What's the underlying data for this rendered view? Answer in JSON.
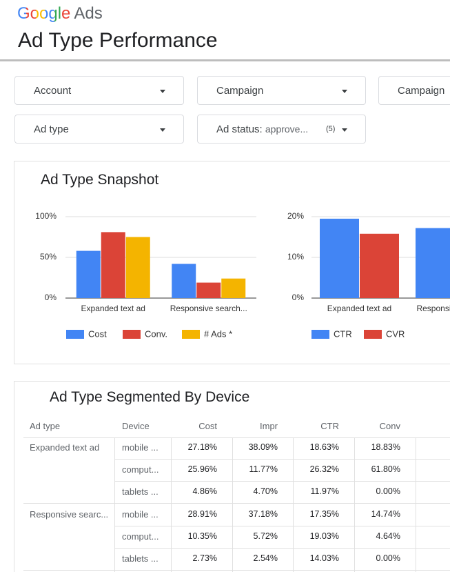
{
  "header": {
    "logo_google": "Google",
    "logo_ads": "Ads",
    "title": "Ad Type Performance"
  },
  "filters": [
    {
      "label": "Account"
    },
    {
      "label": "Campaign"
    },
    {
      "label": "Campaign"
    },
    {
      "label": "Ad type"
    },
    {
      "label": "Ad status:",
      "value": "approve...",
      "count": "(5)"
    }
  ],
  "snapshot": {
    "title": "Ad Type Snapshot",
    "charts": [
      {
        "type": "bar",
        "categories": [
          "Expanded text ad",
          "Responsive search..."
        ],
        "series": [
          {
            "name": "Cost",
            "color": "#4285f4",
            "values": [
              58,
              42
            ]
          },
          {
            "name": "Conv.",
            "color": "#db4437",
            "values": [
              81,
              19
            ]
          },
          {
            "name": "# Ads *",
            "color": "#f4b400",
            "values": [
              75,
              24
            ]
          }
        ],
        "ylim": [
          0,
          100
        ],
        "yticks": [
          {
            "value": 0,
            "label": "0%"
          },
          {
            "value": 50,
            "label": "50%"
          },
          {
            "value": 100,
            "label": "100%"
          }
        ],
        "grid": true
      },
      {
        "type": "bar",
        "categories": [
          "Expanded text ad",
          "Responsive search..."
        ],
        "series": [
          {
            "name": "CTR",
            "color": "#4285f4",
            "values": [
              19.5,
              17.2
            ]
          },
          {
            "name": "CVR",
            "color": "#db4437",
            "values": [
              15.8,
              null
            ]
          }
        ],
        "ylim": [
          0,
          20
        ],
        "yticks": [
          {
            "value": 0,
            "label": "0%"
          },
          {
            "value": 10,
            "label": "10%"
          },
          {
            "value": 20,
            "label": "20%"
          }
        ],
        "grid": true
      }
    ]
  },
  "table": {
    "title": "Ad Type Segmented By Device",
    "columns": [
      "Ad type",
      "Device",
      "Cost",
      "Impr",
      "CTR",
      "Conv"
    ],
    "rows": [
      [
        "Expanded text ad",
        "mobile ...",
        "27.18%",
        "38.09%",
        "18.63%",
        "18.83%"
      ],
      [
        null,
        "comput...",
        "25.96%",
        "11.77%",
        "26.32%",
        "61.80%"
      ],
      [
        null,
        "tablets ...",
        "4.86%",
        "4.70%",
        "11.97%",
        "0.00%"
      ],
      [
        "Responsive searc...",
        "mobile ...",
        "28.91%",
        "37.18%",
        "17.35%",
        "14.74%"
      ],
      [
        null,
        "comput...",
        "10.35%",
        "5.72%",
        "19.03%",
        "4.64%"
      ],
      [
        null,
        "tablets ...",
        "2.73%",
        "2.54%",
        "14.03%",
        "0.00%"
      ]
    ]
  }
}
